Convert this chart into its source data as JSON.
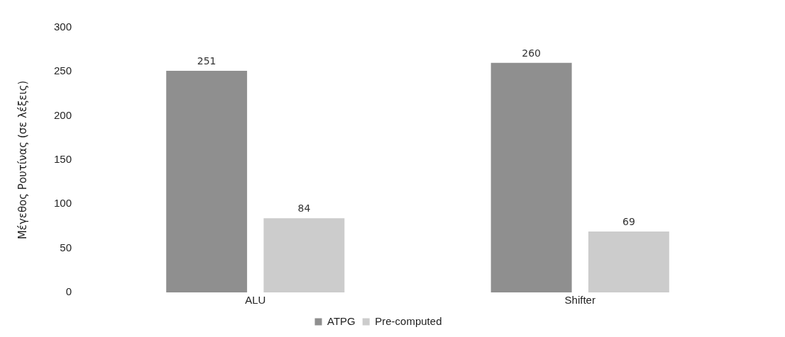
{
  "chart_data": {
    "type": "bar",
    "ylabel": "Μέγεθος Ρουτίνας (σε λέξεις)",
    "categories": [
      "ALU",
      "Shifter"
    ],
    "series": [
      {
        "name": "ATPG",
        "color": "#8f8f8f",
        "values": [
          251,
          260
        ]
      },
      {
        "name": "Pre-computed",
        "color": "#cccccc",
        "values": [
          84,
          69
        ]
      }
    ],
    "ylim": [
      0,
      300
    ],
    "yticks": [
      0,
      50,
      100,
      150,
      200,
      250,
      300
    ],
    "grid": false,
    "legend": "bottom",
    "data_labels": true
  }
}
